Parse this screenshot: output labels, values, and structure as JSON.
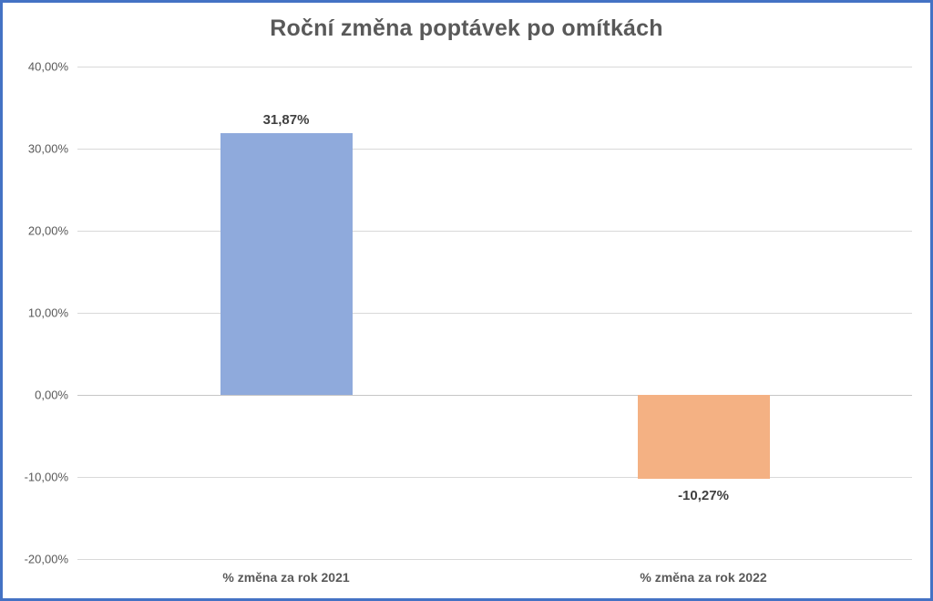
{
  "chart_data": {
    "type": "bar",
    "title": "Roční změna poptávek po omítkách",
    "categories": [
      "% změna za rok 2021",
      "% změna za rok 2022"
    ],
    "values": [
      31.87,
      -10.27
    ],
    "value_labels": [
      "31,87%",
      "-10,27%"
    ],
    "bar_colors": [
      "#8FAADC",
      "#F4B183"
    ],
    "xlabel": "",
    "ylabel": "",
    "ylim": [
      -20,
      40
    ],
    "ytick_step": 10,
    "ytick_labels": [
      "40,00%",
      "30,00%",
      "20,00%",
      "10,00%",
      "0,00%",
      "-10,00%",
      "-20,00%"
    ],
    "grid": true,
    "legend": "none",
    "colors": {
      "frame_border": "#4472C4",
      "title_text": "#595959",
      "axis_text": "#595959",
      "data_label_text": "#404040",
      "gridline": "#D9D9D9",
      "background": "#FFFFFF"
    }
  }
}
